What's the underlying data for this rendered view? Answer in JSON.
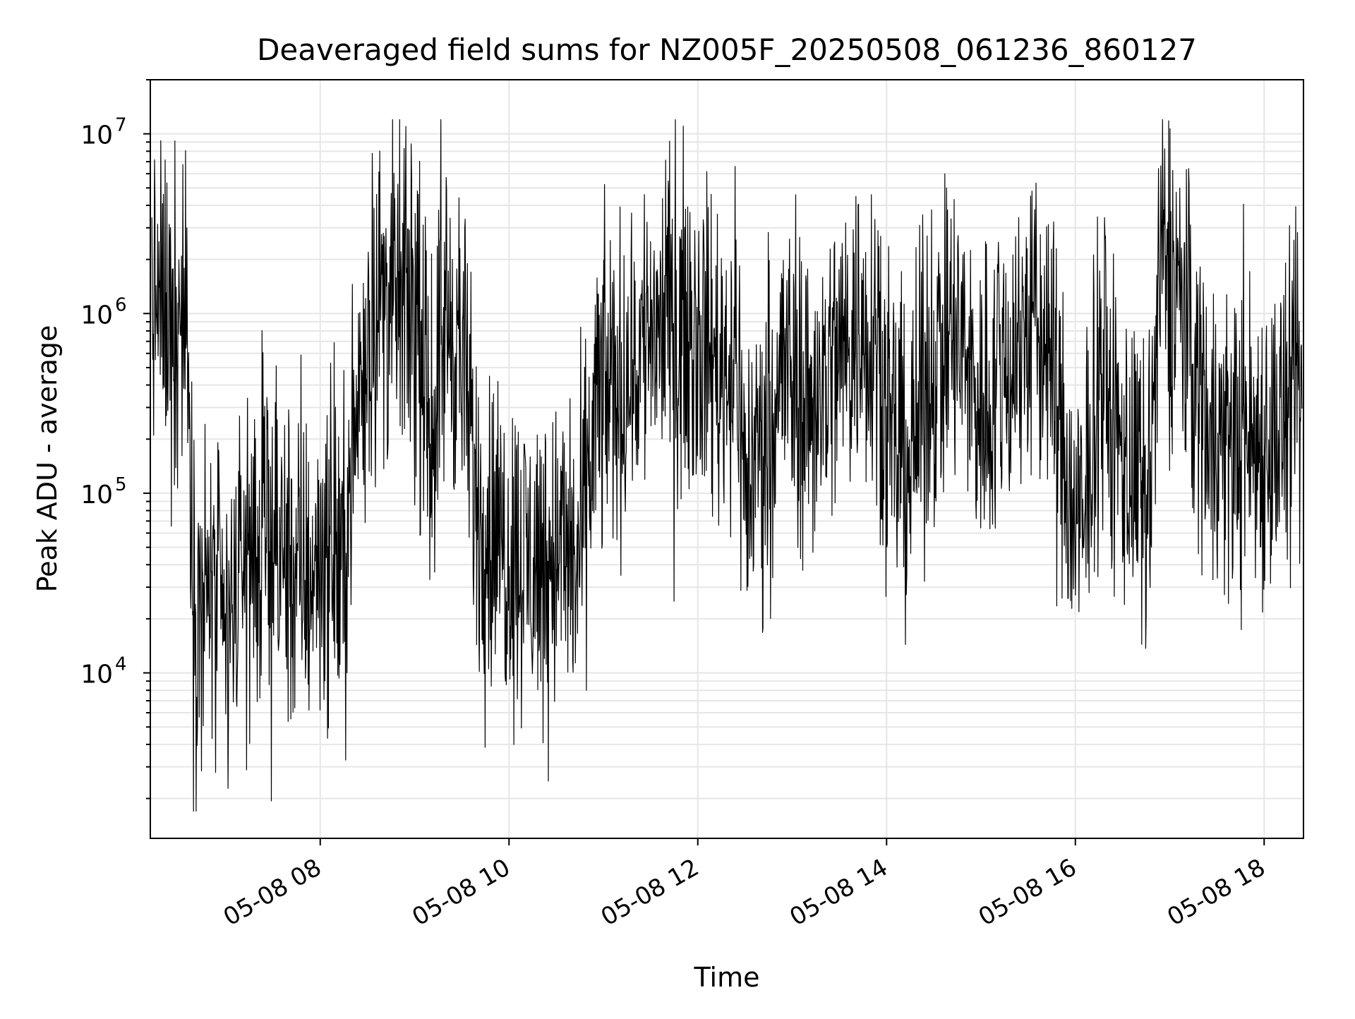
{
  "chart_data": {
    "type": "line",
    "title": "Deaveraged field sums for NZ005F_20250508_061236_860127",
    "xlabel": "Time",
    "ylabel": "Peak ADU - average",
    "xlim": [
      "2025-05-08 06:12",
      "2025-05-08 18:25"
    ],
    "x_ticks": [
      "2025-05-08 08:00",
      "2025-05-08 10:00",
      "2025-05-08 12:00",
      "2025-05-08 14:00",
      "2025-05-08 16:00",
      "2025-05-08 18:00"
    ],
    "x_tick_labels": [
      "05-08 08",
      "05-08 10",
      "05-08 12",
      "05-08 14",
      "05-08 16",
      "05-08 18"
    ],
    "y_scale": "log",
    "ylim": [
      1200,
      20000000
    ],
    "y_ticks": [
      10000,
      100000,
      1000000,
      10000000
    ],
    "y_tick_labels": [
      {
        "base": "10",
        "exp": "4"
      },
      {
        "base": "10",
        "exp": "5"
      },
      {
        "base": "10",
        "exp": "6"
      },
      {
        "base": "10",
        "exp": "7"
      }
    ],
    "grid": true,
    "line_color": "#000000",
    "grid_color": "#e6e6e6",
    "series": [
      {
        "x": [
          "2025-05-08 06:13",
          "2025-05-08 06:25",
          "2025-05-08 06:35",
          "2025-05-08 06:40",
          "2025-05-08 06:50",
          "2025-05-08 07:00",
          "2025-05-08 07:10",
          "2025-05-08 07:20",
          "2025-05-08 07:30",
          "2025-05-08 07:40",
          "2025-05-08 07:50",
          "2025-05-08 08:00",
          "2025-05-08 08:15",
          "2025-05-08 08:25",
          "2025-05-08 08:35",
          "2025-05-08 08:50",
          "2025-05-08 09:00",
          "2025-05-08 09:10",
          "2025-05-08 09:20",
          "2025-05-08 09:30",
          "2025-05-08 09:40",
          "2025-05-08 09:50",
          "2025-05-08 10:00",
          "2025-05-08 10:15",
          "2025-05-08 10:30",
          "2025-05-08 10:45",
          "2025-05-08 10:55",
          "2025-05-08 11:05",
          "2025-05-08 11:15",
          "2025-05-08 11:30",
          "2025-05-08 11:45",
          "2025-05-08 12:00",
          "2025-05-08 12:15",
          "2025-05-08 12:25",
          "2025-05-08 12:30",
          "2025-05-08 12:40",
          "2025-05-08 12:55",
          "2025-05-08 13:10",
          "2025-05-08 13:25",
          "2025-05-08 13:40",
          "2025-05-08 13:55",
          "2025-05-08 14:00",
          "2025-05-08 14:15",
          "2025-05-08 14:30",
          "2025-05-08 14:45",
          "2025-05-08 15:00",
          "2025-05-08 15:15",
          "2025-05-08 15:30",
          "2025-05-08 15:45",
          "2025-05-08 15:55",
          "2025-05-08 16:05",
          "2025-05-08 16:15",
          "2025-05-08 16:25",
          "2025-05-08 16:35",
          "2025-05-08 16:45",
          "2025-05-08 16:55",
          "2025-05-08 17:05",
          "2025-05-08 17:15",
          "2025-05-08 17:30",
          "2025-05-08 17:45",
          "2025-05-08 18:00",
          "2025-05-08 18:15",
          "2025-05-08 18:24"
        ],
        "values": [
          1200000,
          1000000,
          1000000,
          20000,
          30000,
          15000,
          40000,
          50000,
          50000,
          40000,
          30000,
          50000,
          40000,
          400000,
          1200000,
          1200000,
          1000000,
          200000,
          1000000,
          600000,
          80000,
          60000,
          50000,
          40000,
          50000,
          40000,
          300000,
          400000,
          400000,
          900000,
          900000,
          800000,
          500000,
          600000,
          100000,
          200000,
          500000,
          300000,
          500000,
          800000,
          900000,
          200000,
          150000,
          600000,
          700000,
          300000,
          500000,
          900000,
          600000,
          100000,
          50000,
          600000,
          200000,
          150000,
          60000,
          2000000,
          1500000,
          500000,
          200000,
          200000,
          200000,
          250000,
          300000
        ]
      }
    ]
  }
}
